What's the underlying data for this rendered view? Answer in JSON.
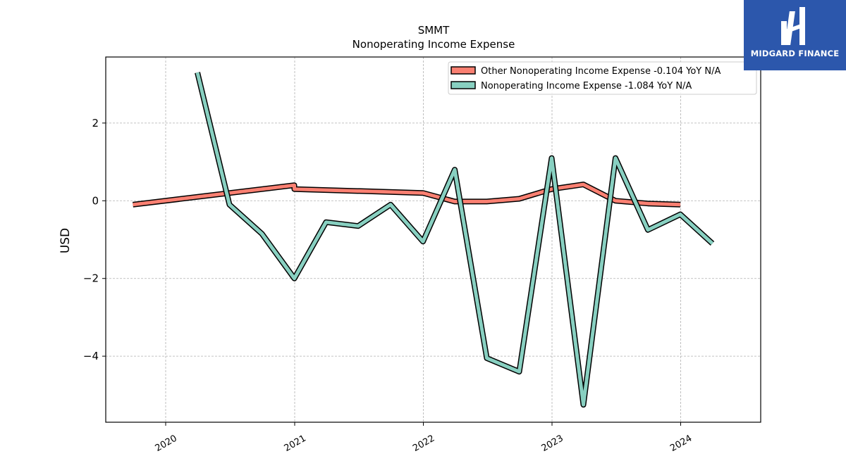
{
  "chart_data": {
    "type": "line",
    "title": "SMMT",
    "subtitle": "Nonoperating Income Expense",
    "xlabel": "",
    "ylabel": "USD",
    "x_ticks": [
      "2020",
      "2021",
      "2022",
      "2023",
      "2024"
    ],
    "y_ticks": [
      2,
      0,
      -2,
      -4
    ],
    "ylim": [
      -5.7,
      3.7
    ],
    "xlim": [
      "2019-07-15",
      "2024-08-15"
    ],
    "grid": true,
    "legend_position": "top-right",
    "series": [
      {
        "name": "Other Nonoperating Income Expense  -0.104 YoY N/A",
        "color": "#fa8072",
        "x": [
          "2019-09-30",
          "2020-12-31",
          "2020-12-31",
          "2021-12-31",
          "2022-03-31",
          "2022-06-30",
          "2022-09-30",
          "2022-12-31",
          "2023-03-31",
          "2023-06-30",
          "2023-09-30",
          "2023-12-31"
        ],
        "values": [
          -0.1,
          0.4,
          0.3,
          0.2,
          -0.02,
          -0.02,
          0.05,
          0.3,
          0.42,
          0.0,
          -0.07,
          -0.1
        ]
      },
      {
        "name": "Nonoperating Income Expense  -1.084 YoY N/A",
        "color": "#88d0c1",
        "x": [
          "2020-03-31",
          "2020-06-30",
          "2020-09-30",
          "2020-12-31",
          "2021-03-31",
          "2021-06-30",
          "2021-09-30",
          "2021-12-31",
          "2022-03-31",
          "2022-06-30",
          "2022-09-30",
          "2022-12-31",
          "2023-03-31",
          "2023-06-30",
          "2023-09-30",
          "2023-12-31",
          "2024-03-31"
        ],
        "values": [
          3.3,
          -0.1,
          -0.85,
          -2.0,
          -0.55,
          -0.65,
          -0.1,
          -1.05,
          0.8,
          -4.05,
          -4.4,
          1.1,
          -5.25,
          1.1,
          -0.75,
          -0.35,
          -1.1
        ]
      }
    ]
  },
  "logo": {
    "text": "MIDGARD FINANCE",
    "background": "#2c57ac",
    "icon": "midgard-logo-icon"
  }
}
